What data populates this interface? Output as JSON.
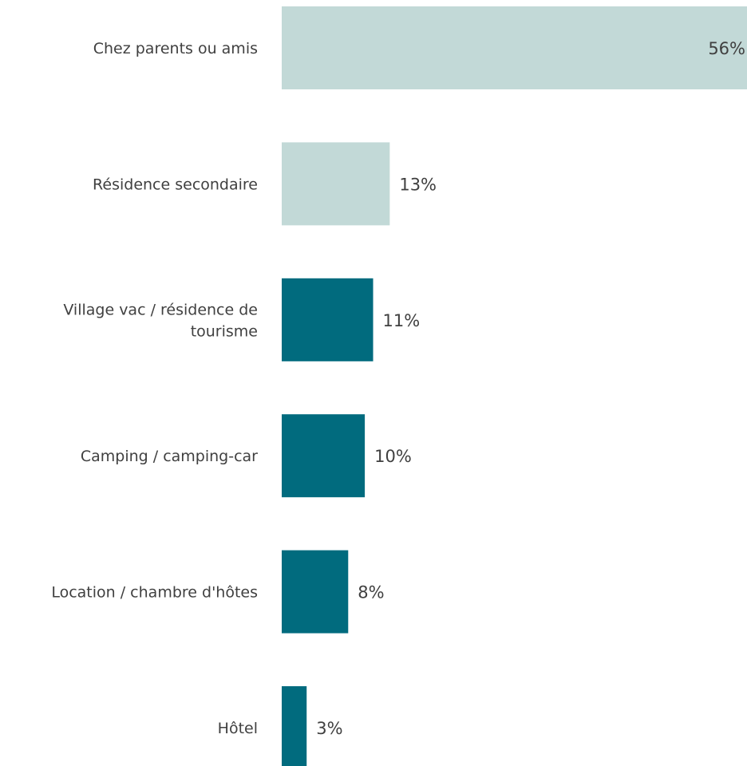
{
  "chart_data": {
    "type": "bar",
    "orientation": "horizontal",
    "categories": [
      "Chez parents ou amis",
      "Résidence secondaire",
      "Village vac / résidence de tourisme",
      "Camping / camping-car",
      "Location / chambre d'hôtes",
      "Hôtel"
    ],
    "values": [
      56,
      13,
      11,
      10,
      8,
      3
    ],
    "value_labels": [
      "56%",
      "13%",
      "11%",
      "10%",
      "8%",
      "3%"
    ],
    "colors": [
      "#c2d9d7",
      "#c2d9d7",
      "#016b7e",
      "#016b7e",
      "#016b7e",
      "#016b7e"
    ],
    "xlim": [
      0,
      56
    ],
    "grid": false,
    "legend": "none"
  }
}
